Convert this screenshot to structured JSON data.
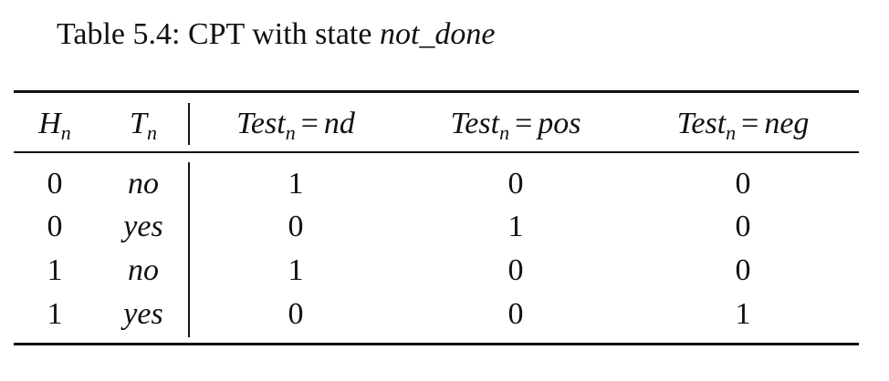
{
  "caption": {
    "prefix": "Table 5.4:  CPT with state ",
    "state": "not_done"
  },
  "table": {
    "headers": [
      {
        "base": "H",
        "sub": "n",
        "rhs": ""
      },
      {
        "base": "T",
        "sub": "n",
        "rhs": ""
      },
      {
        "base": "Test",
        "sub": "n",
        "rhs": "nd"
      },
      {
        "base": "Test",
        "sub": "n",
        "rhs": "pos"
      },
      {
        "base": "Test",
        "sub": "n",
        "rhs": "neg"
      }
    ],
    "rows": [
      [
        "0",
        "no",
        "1",
        "0",
        "0"
      ],
      [
        "0",
        "yes",
        "0",
        "1",
        "0"
      ],
      [
        "1",
        "no",
        "1",
        "0",
        "0"
      ],
      [
        "1",
        "yes",
        "0",
        "0",
        "1"
      ]
    ],
    "eq_sign": "="
  }
}
